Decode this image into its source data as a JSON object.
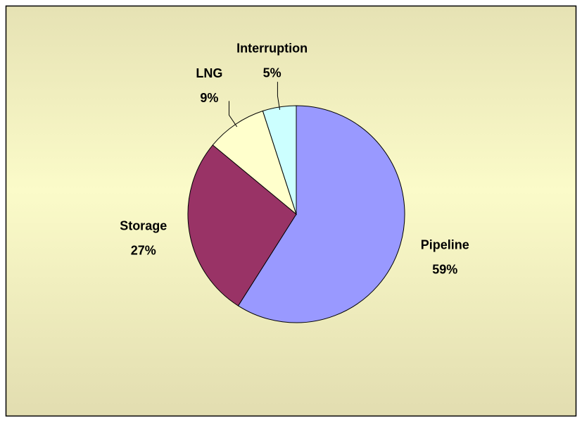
{
  "chart_data": {
    "type": "pie",
    "categories": [
      "Pipeline",
      "Storage",
      "LNG",
      "Interruption"
    ],
    "values": [
      59,
      27,
      9,
      5
    ],
    "value_labels": [
      "59%",
      "27%",
      "9%",
      "5%"
    ],
    "colors": [
      "#9999ff",
      "#993366",
      "#ffffcc",
      "#ccffff"
    ]
  }
}
